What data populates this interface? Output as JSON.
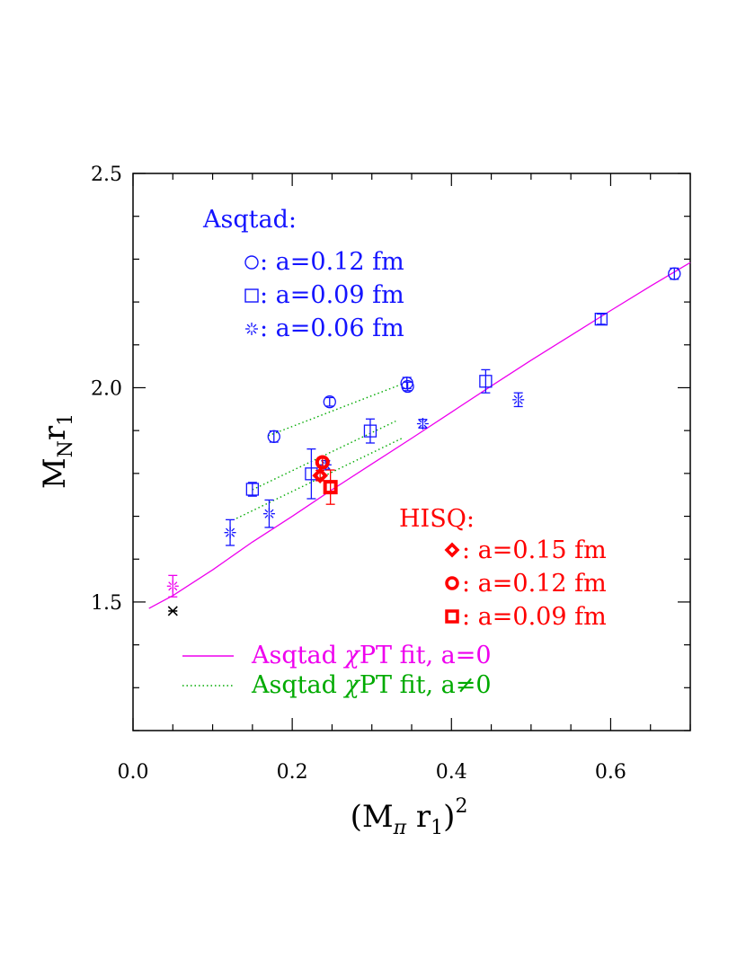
{
  "chart_data": {
    "type": "scatter",
    "xlabel": {
      "main": "(M",
      "sub1": "π",
      "mid": " r",
      "sub2": "1",
      "tail": ")",
      "sup": "2"
    },
    "ylabel": {
      "main": "M",
      "sub1": "N",
      "mid": "r",
      "sub2": "1"
    },
    "xlim": [
      0.0,
      0.7
    ],
    "ylim": [
      1.2,
      2.5
    ],
    "xticks": [
      "0.0",
      "0.2",
      "0.4",
      "0.6"
    ],
    "yticks": [
      "1.5",
      "2.0",
      "2.5"
    ],
    "legend_asqtad": {
      "title": "Asqtad:",
      "entries": [
        {
          "symbol": "circle",
          "label": ": a=0.12 fm"
        },
        {
          "symbol": "square",
          "label": ": a=0.09 fm"
        },
        {
          "symbol": "burst",
          "label": ": a=0.06 fm"
        }
      ]
    },
    "legend_hisq": {
      "title": "HISQ:",
      "entries": [
        {
          "symbol": "diamond",
          "label": ": a=0.15 fm"
        },
        {
          "symbol": "circle",
          "label": ": a=0.12 fm"
        },
        {
          "symbol": "square",
          "label": ": a=0.09 fm"
        }
      ]
    },
    "legend_fits": [
      {
        "style": "solid",
        "color": "#ee00ee",
        "pre": "Asqtad ",
        "chi": "χ",
        "post": "PT fit, a=0"
      },
      {
        "style": "dotted",
        "color": "#00aa00",
        "pre": "Asqtad ",
        "chi": "χ",
        "post": "PT fit, a≠0"
      }
    ],
    "colors": {
      "asqtad": "#1414ff",
      "hisq": "#ff0000",
      "fit": "#ee00ee",
      "fit_a": "#00aa00",
      "extrap": "#000000",
      "frame": "#000000"
    },
    "series": [
      {
        "name": "Asqtad a=0.12 fm",
        "symbol": "circle",
        "color": "#1414ff",
        "points": [
          {
            "x": 0.177,
            "y": 1.886,
            "err": 0.013
          },
          {
            "x": 0.247,
            "y": 1.967,
            "err": 0.01
          },
          {
            "x": 0.344,
            "y": 2.011,
            "err": 0.013
          },
          {
            "x": 0.345,
            "y": 2.003,
            "err": 0.01
          },
          {
            "x": 0.68,
            "y": 2.266,
            "err": 0.013
          }
        ]
      },
      {
        "name": "Asqtad a=0.09 fm",
        "symbol": "square",
        "color": "#1414ff",
        "points": [
          {
            "x": 0.15,
            "y": 1.763,
            "err": 0.016
          },
          {
            "x": 0.224,
            "y": 1.799,
            "err": 0.058
          },
          {
            "x": 0.298,
            "y": 1.899,
            "err": 0.028
          },
          {
            "x": 0.443,
            "y": 2.015,
            "err": 0.027
          },
          {
            "x": 0.588,
            "y": 2.16,
            "err": 0.012
          }
        ]
      },
      {
        "name": "Asqtad a=0.06 fm",
        "symbol": "burst",
        "color": "#1414ff",
        "points": [
          {
            "x": 0.122,
            "y": 1.662,
            "err": 0.03
          },
          {
            "x": 0.171,
            "y": 1.706,
            "err": 0.032
          },
          {
            "x": 0.242,
            "y": 1.82,
            "err": 0.01
          },
          {
            "x": 0.364,
            "y": 1.916,
            "err": 0.01
          },
          {
            "x": 0.484,
            "y": 1.972,
            "err": 0.016
          }
        ]
      },
      {
        "name": "HISQ a=0.15 fm",
        "symbol": "diamond",
        "color": "#ff0000",
        "points": [
          {
            "x": 0.235,
            "y": 1.795,
            "err": 0.012
          }
        ]
      },
      {
        "name": "HISQ a=0.12 fm",
        "symbol": "circle",
        "color": "#ff0000",
        "points": [
          {
            "x": 0.238,
            "y": 1.826,
            "err": 0.012
          }
        ]
      },
      {
        "name": "HISQ a=0.09 fm",
        "symbol": "square",
        "color": "#ff0000",
        "points": [
          {
            "x": 0.248,
            "y": 1.768,
            "err": 0.04
          }
        ]
      },
      {
        "name": "physical point extrapolation (magenta)",
        "symbol": "burst",
        "color": "#ee00ee",
        "points": [
          {
            "x": 0.05,
            "y": 1.537,
            "err": 0.025
          }
        ]
      },
      {
        "name": "experimental value",
        "symbol": "cross",
        "color": "#000000",
        "points": [
          {
            "x": 0.05,
            "y": 1.479,
            "err": 0.0
          }
        ]
      }
    ],
    "fit_a0": {
      "x": [
        0.02,
        0.05,
        0.1,
        0.15,
        0.2,
        0.25,
        0.3,
        0.35,
        0.4,
        0.45,
        0.5,
        0.55,
        0.6,
        0.65,
        0.7
      ],
      "y": [
        1.485,
        1.515,
        1.575,
        1.64,
        1.7,
        1.762,
        1.822,
        1.882,
        1.943,
        2.004,
        2.064,
        2.122,
        2.18,
        2.237,
        2.292
      ]
    },
    "fit_a_nonzero": [
      {
        "x": [
          0.17,
          0.34
        ],
        "y": [
          1.888,
          2.01
        ]
      },
      {
        "x": [
          0.15,
          0.33
        ],
        "y": [
          1.762,
          1.922
        ]
      },
      {
        "x": [
          0.13,
          0.34
        ],
        "y": [
          1.695,
          1.884
        ]
      }
    ]
  }
}
